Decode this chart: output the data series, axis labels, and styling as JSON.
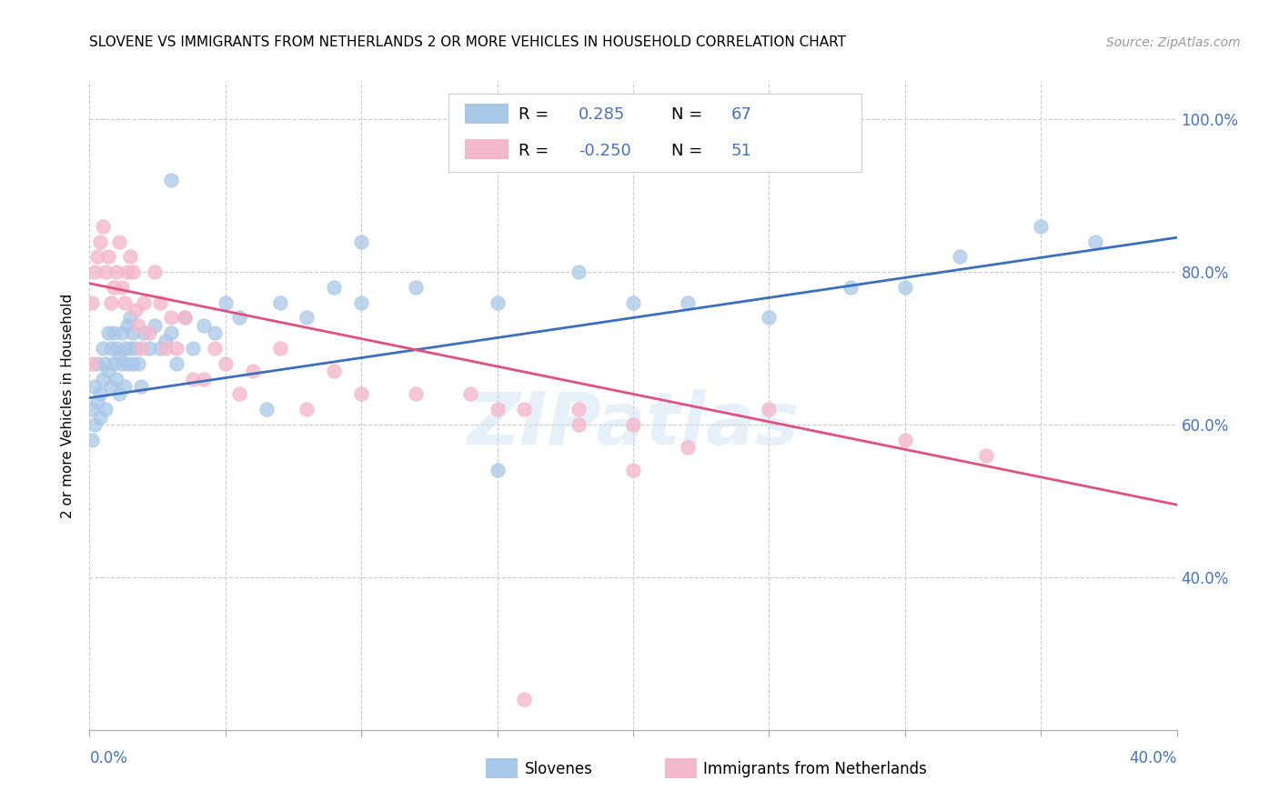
{
  "title": "SLOVENE VS IMMIGRANTS FROM NETHERLANDS 2 OR MORE VEHICLES IN HOUSEHOLD CORRELATION CHART",
  "source": "Source: ZipAtlas.com",
  "ylabel": "2 or more Vehicles in Household",
  "blue_color": "#a8c8e8",
  "pink_color": "#f4b8cc",
  "trendline_blue": "#3a6fbf",
  "trendline_pink": "#e05080",
  "watermark": "ZIPatlas",
  "blue_R": "0.285",
  "blue_N": "67",
  "pink_R": "-0.250",
  "pink_N": "51",
  "blue_scatter_x": [
    0.001,
    0.001,
    0.002,
    0.002,
    0.003,
    0.003,
    0.004,
    0.004,
    0.005,
    0.005,
    0.006,
    0.006,
    0.007,
    0.007,
    0.008,
    0.008,
    0.009,
    0.009,
    0.01,
    0.01,
    0.011,
    0.011,
    0.012,
    0.012,
    0.013,
    0.013,
    0.014,
    0.014,
    0.015,
    0.015,
    0.016,
    0.016,
    0.017,
    0.018,
    0.019,
    0.02,
    0.022,
    0.024,
    0.026,
    0.028,
    0.03,
    0.032,
    0.035,
    0.038,
    0.042,
    0.046,
    0.05,
    0.055,
    0.065,
    0.07,
    0.08,
    0.09,
    0.1,
    0.12,
    0.15,
    0.18,
    0.22,
    0.28,
    0.32,
    0.35,
    0.37,
    0.03,
    0.1,
    0.15,
    0.2,
    0.25,
    0.3
  ],
  "blue_scatter_y": [
    0.62,
    0.58,
    0.65,
    0.6,
    0.63,
    0.68,
    0.64,
    0.61,
    0.66,
    0.7,
    0.68,
    0.62,
    0.67,
    0.72,
    0.65,
    0.7,
    0.68,
    0.72,
    0.7,
    0.66,
    0.69,
    0.64,
    0.72,
    0.68,
    0.7,
    0.65,
    0.73,
    0.68,
    0.7,
    0.74,
    0.68,
    0.72,
    0.7,
    0.68,
    0.65,
    0.72,
    0.7,
    0.73,
    0.7,
    0.71,
    0.72,
    0.68,
    0.74,
    0.7,
    0.73,
    0.72,
    0.76,
    0.74,
    0.62,
    0.76,
    0.74,
    0.78,
    0.76,
    0.78,
    0.54,
    0.8,
    0.76,
    0.78,
    0.82,
    0.86,
    0.84,
    0.92,
    0.84,
    0.76,
    0.76,
    0.74,
    0.78
  ],
  "pink_scatter_x": [
    0.001,
    0.001,
    0.002,
    0.003,
    0.004,
    0.005,
    0.006,
    0.007,
    0.008,
    0.009,
    0.01,
    0.011,
    0.012,
    0.013,
    0.014,
    0.015,
    0.016,
    0.017,
    0.018,
    0.019,
    0.02,
    0.022,
    0.024,
    0.026,
    0.028,
    0.03,
    0.032,
    0.035,
    0.038,
    0.042,
    0.046,
    0.05,
    0.055,
    0.06,
    0.07,
    0.08,
    0.09,
    0.1,
    0.12,
    0.14,
    0.16,
    0.18,
    0.2,
    0.22,
    0.25,
    0.3,
    0.33,
    0.15,
    0.18,
    0.2,
    0.16
  ],
  "pink_scatter_y": [
    0.68,
    0.76,
    0.8,
    0.82,
    0.84,
    0.86,
    0.8,
    0.82,
    0.76,
    0.78,
    0.8,
    0.84,
    0.78,
    0.76,
    0.8,
    0.82,
    0.8,
    0.75,
    0.73,
    0.7,
    0.76,
    0.72,
    0.8,
    0.76,
    0.7,
    0.74,
    0.7,
    0.74,
    0.66,
    0.66,
    0.7,
    0.68,
    0.64,
    0.67,
    0.7,
    0.62,
    0.67,
    0.64,
    0.64,
    0.64,
    0.62,
    0.62,
    0.6,
    0.57,
    0.62,
    0.58,
    0.56,
    0.62,
    0.6,
    0.54,
    0.24
  ],
  "xlim": [
    0.0,
    0.4
  ],
  "ylim": [
    0.2,
    1.05
  ],
  "y_tick_vals": [
    1.0,
    0.8,
    0.6,
    0.4
  ],
  "y_tick_labels": [
    "100.0%",
    "80.0%",
    "60.0%",
    "40.0%"
  ],
  "blue_trend_x": [
    0.0,
    0.4
  ],
  "blue_trend_y": [
    0.635,
    0.845
  ],
  "pink_trend_x": [
    0.0,
    0.4
  ],
  "pink_trend_y": [
    0.785,
    0.495
  ]
}
